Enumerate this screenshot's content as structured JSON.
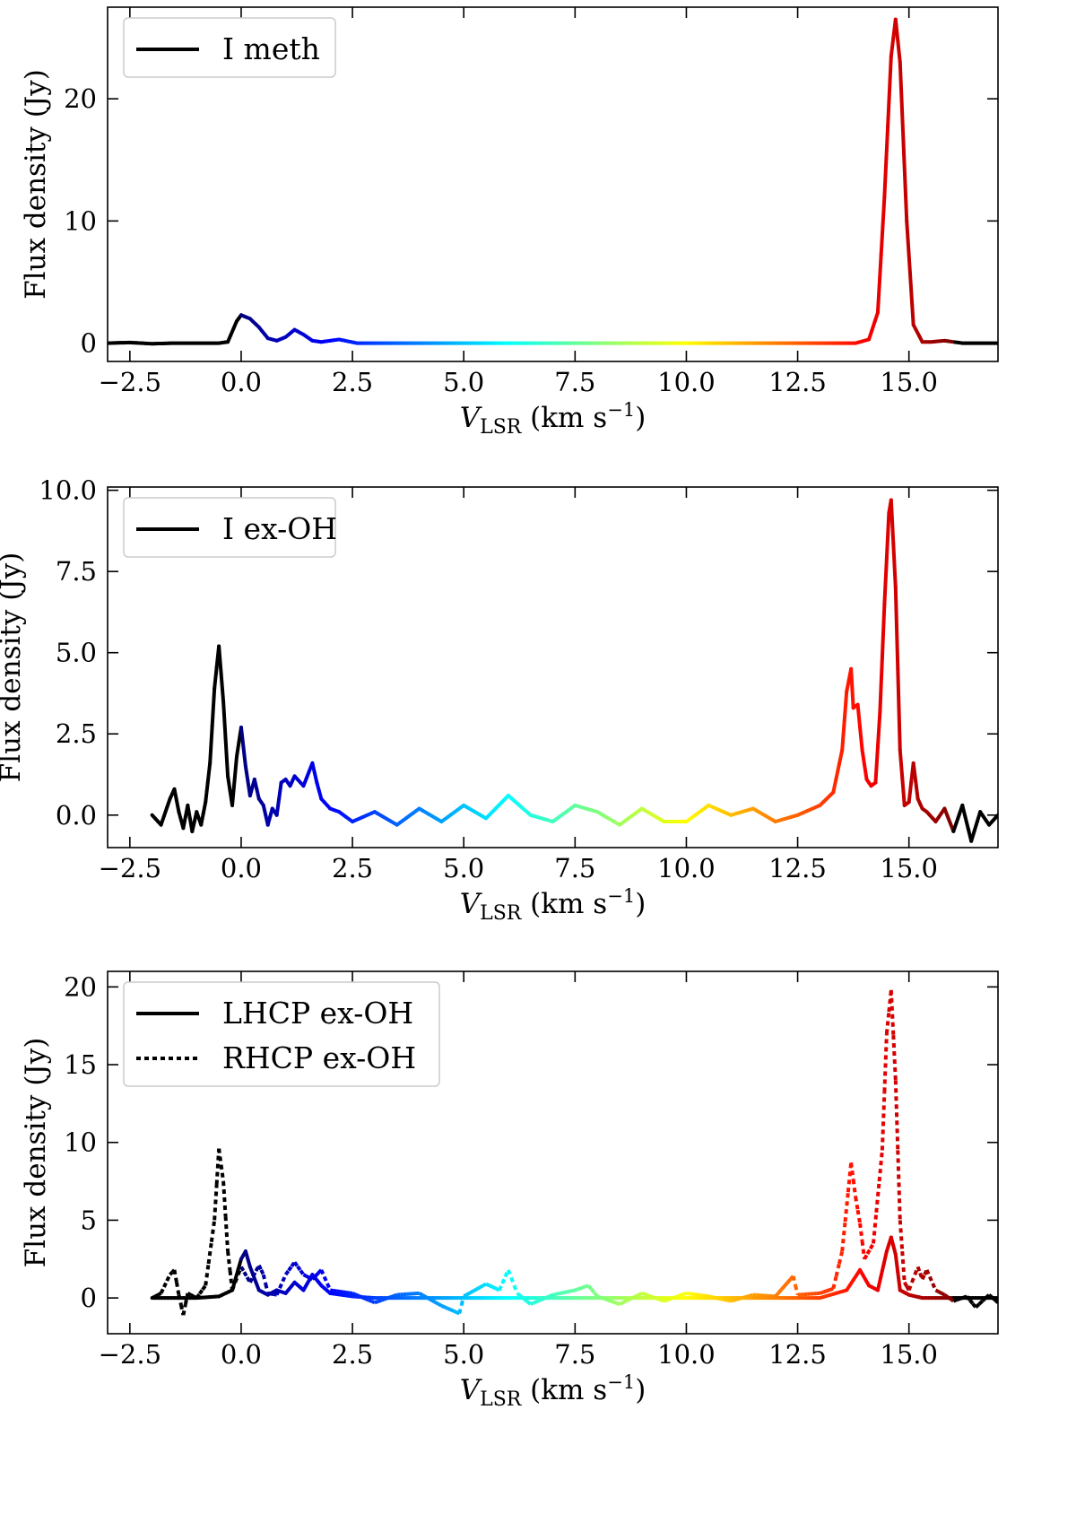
{
  "chart_data": [
    {
      "type": "line",
      "title": "",
      "xlabel": "V_LSR (km s^-1)",
      "xlabel_main": "V",
      "xlabel_sub": "LSR",
      "xlabel_units": "(km s",
      "xlabel_exp": "−1",
      "xlabel_close": ")",
      "ylabel": "Flux density (Jy)",
      "xlim": [
        -3.0,
        17.0
      ],
      "ylim": [
        -1.5,
        27.5
      ],
      "xticks": [
        -2.5,
        0.0,
        2.5,
        5.0,
        7.5,
        10.0,
        12.5,
        15.0
      ],
      "xtick_labels": [
        "−2.5",
        "0.0",
        "2.5",
        "5.0",
        "7.5",
        "10.0",
        "12.5",
        "15.0"
      ],
      "yticks": [
        0,
        10,
        20
      ],
      "ytick_labels": [
        "0",
        "10",
        "20"
      ],
      "legend_position": "top-left",
      "color_scale": "jet colormap over velocity 0 to 16 km/s; black outside",
      "series": [
        {
          "name": "I meth",
          "style": "solid",
          "x": [
            -3.0,
            -2.5,
            -2.0,
            -1.5,
            -1.0,
            -0.5,
            -0.3,
            -0.1,
            0.0,
            0.2,
            0.4,
            0.6,
            0.8,
            1.0,
            1.2,
            1.4,
            1.6,
            1.8,
            2.0,
            2.2,
            2.4,
            2.6,
            3.0,
            4.0,
            5.0,
            6.0,
            7.0,
            8.0,
            9.0,
            10.0,
            11.0,
            12.0,
            13.0,
            13.8,
            14.1,
            14.3,
            14.45,
            14.6,
            14.7,
            14.8,
            14.95,
            15.1,
            15.3,
            15.5,
            15.8,
            16.2,
            16.6,
            17.0
          ],
          "y": [
            0.0,
            0.05,
            -0.05,
            0.0,
            0.0,
            0.0,
            0.1,
            1.8,
            2.3,
            2.0,
            1.3,
            0.4,
            0.2,
            0.5,
            1.1,
            0.7,
            0.2,
            0.1,
            0.2,
            0.3,
            0.15,
            0.0,
            0.0,
            0.0,
            0.0,
            0.0,
            0.0,
            0.0,
            0.0,
            0.0,
            0.0,
            0.0,
            0.0,
            0.0,
            0.3,
            2.5,
            12.0,
            23.5,
            26.5,
            23.0,
            10.0,
            1.5,
            0.1,
            0.1,
            0.2,
            0.0,
            0.0,
            0.0
          ]
        }
      ]
    },
    {
      "type": "line",
      "title": "",
      "xlabel": "V_LSR (km s^-1)",
      "xlabel_main": "V",
      "xlabel_sub": "LSR",
      "xlabel_units": "(km s",
      "xlabel_exp": "−1",
      "xlabel_close": ")",
      "ylabel": "Flux density (Jy)",
      "xlim": [
        -3.0,
        17.0
      ],
      "ylim": [
        -1.0,
        10.1
      ],
      "xticks": [
        -2.5,
        0.0,
        2.5,
        5.0,
        7.5,
        10.0,
        12.5,
        15.0
      ],
      "xtick_labels": [
        "−2.5",
        "0.0",
        "2.5",
        "5.0",
        "7.5",
        "10.0",
        "12.5",
        "15.0"
      ],
      "yticks": [
        0.0,
        2.5,
        5.0,
        7.5,
        10.0
      ],
      "ytick_labels": [
        "0.0",
        "2.5",
        "5.0",
        "7.5",
        "10.0"
      ],
      "legend_position": "top-left",
      "color_scale": "jet colormap over velocity 0 to 16 km/s; black outside",
      "series": [
        {
          "name": "I ex-OH",
          "style": "solid",
          "x": [
            -2.0,
            -1.8,
            -1.6,
            -1.5,
            -1.4,
            -1.3,
            -1.2,
            -1.1,
            -1.0,
            -0.9,
            -0.8,
            -0.7,
            -0.6,
            -0.5,
            -0.4,
            -0.3,
            -0.2,
            -0.1,
            0.0,
            0.1,
            0.2,
            0.3,
            0.4,
            0.5,
            0.6,
            0.7,
            0.8,
            0.9,
            1.0,
            1.1,
            1.2,
            1.4,
            1.6,
            1.7,
            1.8,
            2.0,
            2.2,
            2.5,
            3.0,
            3.5,
            4.0,
            4.5,
            5.0,
            5.5,
            6.0,
            6.5,
            7.0,
            7.5,
            8.0,
            8.5,
            9.0,
            9.5,
            10.0,
            10.5,
            11.0,
            11.5,
            12.0,
            12.5,
            13.0,
            13.3,
            13.5,
            13.6,
            13.7,
            13.75,
            13.85,
            13.95,
            14.05,
            14.15,
            14.25,
            14.35,
            14.45,
            14.55,
            14.6,
            14.7,
            14.8,
            14.9,
            15.0,
            15.1,
            15.2,
            15.3,
            15.4,
            15.6,
            15.8,
            16.0,
            16.2,
            16.4,
            16.6,
            16.8,
            17.0
          ],
          "y": [
            0.0,
            -0.3,
            0.5,
            0.8,
            0.1,
            -0.4,
            0.3,
            -0.5,
            0.1,
            -0.3,
            0.4,
            1.6,
            3.9,
            5.2,
            3.5,
            1.2,
            0.3,
            1.8,
            2.7,
            1.5,
            0.6,
            1.1,
            0.5,
            0.3,
            -0.3,
            0.2,
            0.0,
            1.0,
            1.1,
            0.9,
            1.2,
            0.9,
            1.6,
            1.0,
            0.5,
            0.2,
            0.1,
            -0.2,
            0.1,
            -0.3,
            0.2,
            -0.2,
            0.3,
            -0.1,
            0.6,
            0.0,
            -0.2,
            0.3,
            0.1,
            -0.3,
            0.2,
            -0.2,
            -0.2,
            0.3,
            0.0,
            0.2,
            -0.2,
            0.0,
            0.3,
            0.7,
            2.0,
            3.8,
            4.5,
            3.3,
            3.4,
            2.0,
            1.1,
            0.9,
            1.0,
            3.2,
            6.5,
            9.3,
            9.7,
            7.0,
            2.0,
            0.3,
            0.4,
            1.6,
            0.5,
            0.2,
            0.1,
            -0.2,
            0.2,
            -0.5,
            0.3,
            -0.8,
            0.1,
            -0.3,
            0.0
          ]
        }
      ]
    },
    {
      "type": "line",
      "title": "",
      "xlabel": "V_LSR (km s^-1)",
      "xlabel_main": "V",
      "xlabel_sub": "LSR",
      "xlabel_units": "(km s",
      "xlabel_exp": "−1",
      "xlabel_close": ")",
      "ylabel": "Flux density (Jy)",
      "xlim": [
        -3.0,
        17.0
      ],
      "ylim": [
        -2.3,
        21.0
      ],
      "xticks": [
        -2.5,
        0.0,
        2.5,
        5.0,
        7.5,
        10.0,
        12.5,
        15.0
      ],
      "xtick_labels": [
        "−2.5",
        "0.0",
        "2.5",
        "5.0",
        "7.5",
        "10.0",
        "12.5",
        "15.0"
      ],
      "yticks": [
        0,
        5,
        10,
        15,
        20
      ],
      "ytick_labels": [
        "0",
        "5",
        "10",
        "15",
        "20"
      ],
      "legend_position": "top-left",
      "color_scale": "jet colormap over velocity 0 to 16 km/s; black outside",
      "series": [
        {
          "name": "LHCP ex-OH",
          "style": "solid",
          "x": [
            -2.0,
            -1.5,
            -1.0,
            -0.5,
            -0.2,
            0.0,
            0.1,
            0.2,
            0.4,
            0.6,
            0.8,
            1.0,
            1.2,
            1.4,
            1.6,
            1.8,
            2.0,
            2.5,
            3.0,
            4.0,
            5.0,
            6.0,
            7.0,
            8.0,
            9.0,
            10.0,
            11.0,
            12.0,
            13.0,
            13.6,
            13.9,
            14.1,
            14.3,
            14.5,
            14.6,
            14.7,
            14.8,
            15.0,
            15.3,
            15.6,
            16.0,
            16.5,
            17.0
          ],
          "y": [
            0.0,
            0.0,
            0.0,
            0.1,
            0.5,
            2.5,
            3.0,
            2.0,
            0.5,
            0.2,
            0.5,
            0.3,
            1.0,
            0.5,
            1.5,
            0.8,
            0.3,
            0.1,
            0.0,
            0.0,
            0.0,
            0.0,
            0.0,
            0.0,
            0.0,
            0.0,
            0.0,
            0.0,
            0.0,
            0.5,
            1.8,
            0.8,
            0.5,
            3.0,
            3.9,
            2.8,
            0.5,
            0.2,
            0.0,
            0.0,
            0.0,
            0.0,
            0.0
          ]
        },
        {
          "name": "RHCP ex-OH",
          "style": "dotted",
          "x": [
            -2.0,
            -1.8,
            -1.6,
            -1.5,
            -1.4,
            -1.3,
            -1.2,
            -1.0,
            -0.8,
            -0.6,
            -0.5,
            -0.4,
            -0.3,
            -0.2,
            0.0,
            0.2,
            0.4,
            0.5,
            0.6,
            0.8,
            1.0,
            1.2,
            1.4,
            1.6,
            1.8,
            2.0,
            2.5,
            3.0,
            3.5,
            4.0,
            4.5,
            4.9,
            5.0,
            5.5,
            5.8,
            6.0,
            6.2,
            6.5,
            7.0,
            7.5,
            7.8,
            8.0,
            8.5,
            9.0,
            9.5,
            10.0,
            10.5,
            11.0,
            11.5,
            12.0,
            12.4,
            12.5,
            13.0,
            13.3,
            13.5,
            13.7,
            13.8,
            13.9,
            14.0,
            14.2,
            14.4,
            14.5,
            14.6,
            14.7,
            14.8,
            14.9,
            15.0,
            15.2,
            15.3,
            15.4,
            15.6,
            15.8,
            16.0,
            16.3,
            16.5,
            16.8,
            17.0
          ],
          "y": [
            0.0,
            0.3,
            1.5,
            1.8,
            0.2,
            -1.1,
            0.3,
            0.0,
            0.8,
            5.0,
            9.6,
            7.5,
            3.0,
            0.5,
            2.0,
            1.0,
            2.1,
            1.5,
            0.3,
            0.2,
            1.5,
            2.3,
            1.5,
            1.2,
            1.8,
            0.5,
            0.3,
            -0.3,
            0.2,
            0.3,
            -0.5,
            -1.0,
            0.1,
            0.9,
            0.5,
            1.8,
            0.3,
            -0.4,
            0.2,
            0.5,
            0.8,
            0.1,
            -0.4,
            0.3,
            -0.2,
            0.3,
            0.1,
            -0.2,
            0.2,
            0.1,
            1.4,
            0.2,
            0.3,
            0.6,
            3.0,
            8.7,
            6.5,
            4.8,
            2.5,
            3.5,
            9.5,
            17.0,
            19.8,
            14.0,
            5.0,
            1.0,
            0.5,
            2.0,
            1.2,
            1.8,
            0.5,
            0.2,
            -0.2,
            0.1,
            -0.6,
            0.2,
            -0.3
          ]
        }
      ]
    }
  ]
}
